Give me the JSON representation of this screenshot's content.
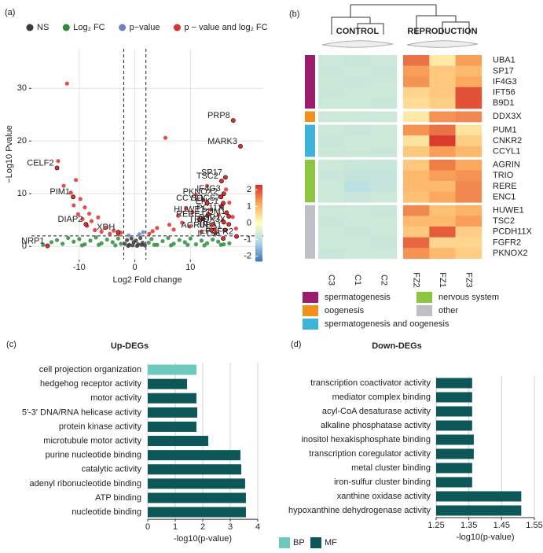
{
  "chart_data": [
    {
      "type": "scatter",
      "panel": "(a)",
      "x_label": "Log2 Fold change",
      "y_label": "−Log10 Pvalue",
      "xlim": [
        -18.6,
        23.1
      ],
      "ylim": [
        -2.5,
        37.5
      ],
      "xticks": [
        -10,
        0,
        10
      ],
      "yticks": [
        0,
        10,
        20,
        30
      ],
      "grid": true,
      "vlines": [
        -2,
        2
      ],
      "hline": 2,
      "legend": "top",
      "series": [
        {
          "name": "NS",
          "color": "#3a3a3a",
          "x": [
            -1.8,
            -1.4,
            -1.0,
            -0.6,
            -0.2,
            0.2,
            0.6,
            1.0,
            1.4,
            1.8,
            -1.2,
            -0.4,
            0.4,
            1.2
          ],
          "values": [
            0.5,
            1.2,
            0.3,
            1.5,
            0.8,
            1.1,
            0.4,
            1.6,
            0.7,
            0.2,
            0.1,
            0.2,
            0.1,
            0.3
          ]
        },
        {
          "name": "Log₂ FC",
          "color": "#2e8b3a",
          "x": [
            -16.5,
            -15,
            -14,
            -13,
            -12,
            -11,
            -10,
            -9,
            -8,
            -7,
            -6,
            -5,
            -4,
            -3,
            -2.5,
            2.5,
            3,
            4,
            5,
            6,
            7,
            8,
            9,
            10,
            11,
            12,
            13,
            14,
            15,
            16,
            17,
            -9.5,
            -6.5,
            -3.5,
            3.5,
            6.5,
            9.5,
            12.5,
            15.5
          ],
          "values": [
            0.3,
            0.8,
            1.2,
            0.5,
            1.6,
            0.9,
            1.4,
            0.4,
            1.1,
            1.7,
            0.6,
            1.3,
            0.8,
            1.5,
            0.5,
            0.7,
            1.4,
            0.3,
            1.0,
            1.6,
            0.5,
            1.2,
            0.8,
            1.5,
            0.4,
            1.1,
            0.6,
            1.3,
            0.9,
            0.4,
            0.6,
            0.2,
            0.3,
            0.2,
            0.3,
            0.2,
            0.3,
            0.2,
            0.3
          ]
        },
        {
          "name": "p−value",
          "color": "#6f7fc4",
          "x": [
            0.8,
            1.5,
            -1.1
          ],
          "values": [
            2.3,
            2.7,
            2.1
          ]
        },
        {
          "name": "p − value and log₂ FC",
          "color": "#e0302c",
          "x": [
            -12.2,
            -13.8,
            -12.8,
            -11.5,
            -11.0,
            -10.6,
            -10.2,
            -9.8,
            -9.4,
            -9.0,
            -8.6,
            -8.2,
            -7.8,
            -7.2,
            -6.6,
            -6.0,
            -5.2,
            -4.5,
            -3.8,
            -3.0,
            -2.5,
            2.6,
            3.2,
            4.0,
            5.5,
            6.2,
            7.0,
            7.8,
            8.5,
            9.2,
            9.8,
            10.4,
            11.0,
            11.6,
            12.3,
            13.0,
            13.7,
            14.4,
            15.1,
            15.8,
            16.4,
            17.0,
            17.6,
            18.2,
            12.0,
            14.5
          ],
          "values": [
            30.9,
            16.2,
            11.5,
            10.2,
            7.8,
            12.6,
            6.1,
            9.0,
            5.2,
            7.4,
            3.9,
            6.2,
            4.8,
            3.1,
            5.5,
            2.8,
            3.6,
            2.4,
            3.0,
            2.3,
            2.6,
            2.4,
            2.9,
            3.5,
            20.6,
            4.1,
            3.2,
            5.8,
            4.5,
            7.2,
            3.8,
            6.5,
            9.8,
            5.1,
            8.8,
            11.5,
            7.0,
            3.3,
            6.0,
            4.9,
            10.8,
            8.3,
            5.6,
            3.4,
            2.8,
            2.5
          ]
        }
      ],
      "annotations": [
        {
          "text": "PRP8",
          "x": 17.7,
          "y": 23.9
        },
        {
          "text": "MARK3",
          "x": 19.0,
          "y": 19.0
        },
        {
          "text": "SP17",
          "x": 16.3,
          "y": 13.1
        },
        {
          "text": "TSC2",
          "x": 15.6,
          "y": 12.4
        },
        {
          "text": "IF4G3",
          "x": 16.0,
          "y": 10.0
        },
        {
          "text": "PKNOX2",
          "x": 15.5,
          "y": 9.4
        },
        {
          "text": "SOCS7",
          "x": 15.9,
          "y": 8.2
        },
        {
          "text": "ENC1",
          "x": 15.6,
          "y": 7.6
        },
        {
          "text": "CCYL1",
          "x": 13.0,
          "y": 8.2
        },
        {
          "text": "HUWE1",
          "x": 13.2,
          "y": 6.1
        },
        {
          "text": "RERE",
          "x": 12.3,
          "y": 5.2
        },
        {
          "text": "PUM1",
          "x": 16.9,
          "y": 5.7
        },
        {
          "text": "PC11X",
          "x": 16.5,
          "y": 6.4
        },
        {
          "text": "DDX3X",
          "x": 16.9,
          "y": 4.2
        },
        {
          "text": "B9D1",
          "x": 16.0,
          "y": 4.6
        },
        {
          "text": "UBA1",
          "x": 16.2,
          "y": 3.1
        },
        {
          "text": "FGFR2",
          "x": 18.3,
          "y": 1.9
        },
        {
          "text": "IFT56",
          "x": 15.9,
          "y": 1.5
        },
        {
          "text": "TRIO",
          "x": 14.0,
          "y": 4.2
        },
        {
          "text": "AGRIN",
          "x": 13.8,
          "y": 3.1
        },
        {
          "text": "CELF2",
          "x": -14.0,
          "y": 14.9
        },
        {
          "text": "PIM1",
          "x": -11.1,
          "y": 9.4
        },
        {
          "text": "DIAP2",
          "x": -8.8,
          "y": 4.2
        },
        {
          "text": "XDH",
          "x": -3.0,
          "y": 2.7
        },
        {
          "text": "NRP1",
          "x": -15.7,
          "y": 0.1
        }
      ]
    },
    {
      "type": "heatmap",
      "panel": "(b)",
      "zlim": [
        -2.3,
        2.3
      ],
      "colorbar_ticks": [
        -2,
        -1,
        0,
        1,
        2
      ],
      "column_groups": [
        {
          "name": "CONTROL",
          "columns": [
            "C3",
            "C1",
            "C2"
          ]
        },
        {
          "name": "REPRODUCTION",
          "columns": [
            "FZ2",
            "FZ1",
            "FZ3"
          ]
        }
      ],
      "groups": [
        {
          "name": "spermatogenesis",
          "color": "#9c1b6b",
          "rows": [
            {
              "label": "UBA1",
              "values": [
                -0.7,
                -0.75,
                -0.7,
                1.7,
                0.3,
                1.3
              ]
            },
            {
              "label": "SP17",
              "values": [
                -0.75,
                -0.7,
                -0.75,
                1.3,
                0.8,
                1.0
              ]
            },
            {
              "label": "IF4G3",
              "values": [
                -0.7,
                -0.75,
                -0.7,
                1.4,
                0.8,
                1.2
              ]
            },
            {
              "label": "IFT56",
              "values": [
                -0.75,
                -0.7,
                -0.7,
                0.6,
                0.8,
                2.0
              ]
            },
            {
              "label": "B9D1",
              "values": [
                -0.7,
                -0.7,
                -0.75,
                0.5,
                0.7,
                2.0
              ]
            }
          ]
        },
        {
          "name": "oogenesis",
          "color": "#f1901d",
          "rows": [
            {
              "label": "DDX3X",
              "values": [
                -0.7,
                -0.7,
                -0.7,
                0.3,
                1.4,
                1.5
              ]
            }
          ]
        },
        {
          "name": "spermatogenesis and oogenesis",
          "color": "#3db4dc",
          "rows": [
            {
              "label": "PUM1",
              "values": [
                -0.7,
                -0.75,
                -0.7,
                1.4,
                1.7,
                0.4
              ]
            },
            {
              "label": "CNKR2",
              "values": [
                -0.75,
                -0.7,
                -0.7,
                0.4,
                2.2,
                0.7
              ]
            },
            {
              "label": "CCYL1",
              "values": [
                -0.7,
                -0.7,
                -0.75,
                0.8,
                1.3,
                1.0
              ]
            }
          ]
        },
        {
          "name": "nervous system",
          "color": "#8cc63f",
          "rows": [
            {
              "label": "AGRIN",
              "values": [
                -0.7,
                -0.75,
                -0.75,
                0.8,
                1.6,
                1.2
              ]
            },
            {
              "label": "TRIO",
              "values": [
                -0.75,
                -0.8,
                -0.8,
                1.0,
                1.3,
                1.4
              ]
            },
            {
              "label": "RERE",
              "values": [
                -0.7,
                -0.95,
                -0.8,
                1.0,
                1.0,
                1.5
              ]
            },
            {
              "label": "ENC1",
              "values": [
                -0.7,
                -0.75,
                -0.7,
                0.9,
                1.2,
                1.5
              ]
            }
          ]
        },
        {
          "name": "other",
          "color": "#bfbfc6",
          "rows": [
            {
              "label": "HUWE1",
              "values": [
                -0.7,
                -0.7,
                -0.75,
                1.5,
                0.9,
                1.1
              ]
            },
            {
              "label": "TSC2",
              "values": [
                -0.75,
                -0.7,
                -0.7,
                1.0,
                1.0,
                1.3
              ]
            },
            {
              "label": "PCDH11X",
              "values": [
                -0.7,
                -0.75,
                -0.7,
                0.8,
                1.9,
                0.7
              ]
            },
            {
              "label": "FGFR2",
              "values": [
                -0.7,
                -0.7,
                -0.75,
                1.8,
                0.6,
                0.6
              ]
            },
            {
              "label": "PKNOX2",
              "values": [
                -0.75,
                -0.7,
                -0.7,
                1.4,
                1.0,
                0.7
              ]
            }
          ]
        }
      ]
    },
    {
      "type": "barh",
      "panel": "(c)",
      "title": "Up-DEGs",
      "x_label": "-log10(p-value)",
      "xlim": [
        0,
        4
      ],
      "xticks": [
        0,
        1,
        2,
        3,
        4
      ],
      "grid": true,
      "legend": "bottom",
      "categories": [
        "cell projection organization",
        "hedgehog receptor activity",
        "motor activity",
        "5'-3' DNA/RNA helicase activity",
        "protein kinase activity",
        "microtubule motor activity",
        "purine nucleotide binding",
        "catalytic activity",
        "adenyl ribonucleotide binding",
        "ATP binding",
        "nucleotide binding"
      ],
      "series": [
        {
          "name": "BP",
          "color": "#6cc7bd",
          "values": [
            1.77,
            null,
            null,
            null,
            null,
            null,
            null,
            null,
            null,
            null,
            null
          ]
        },
        {
          "name": "MF",
          "color": "#0e5758",
          "values": [
            null,
            1.43,
            1.77,
            1.8,
            1.77,
            2.2,
            3.37,
            3.4,
            3.54,
            3.57,
            3.57
          ]
        }
      ]
    },
    {
      "type": "barh",
      "panel": "(d)",
      "title": "Down-DEGs",
      "x_label": "-log10(p-value)",
      "xlim": [
        1.25,
        1.55
      ],
      "xticks": [
        1.25,
        1.35,
        1.45,
        1.55
      ],
      "grid": true,
      "color": "#0e5758",
      "categories": [
        "transcription coactivator activity",
        "mediator complex binding",
        "acyl-CoA desaturase activity",
        "alkaline phosphatase activity",
        "inositol hexakisphosphate binding",
        "transcription coregulator activity",
        "metal cluster binding",
        "iron-sulfur cluster binding",
        "xanthine oxidase activity",
        "hypoxanthine dehydrogenase activity"
      ],
      "values": [
        1.36,
        1.36,
        1.36,
        1.36,
        1.365,
        1.365,
        1.36,
        1.36,
        1.51,
        1.51
      ]
    }
  ]
}
